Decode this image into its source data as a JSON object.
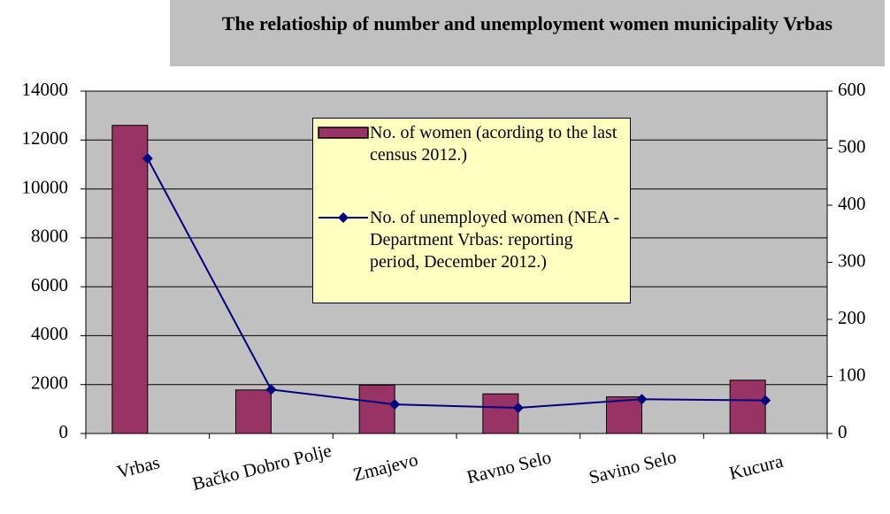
{
  "chart_data": {
    "type": "bar-line",
    "title": "The relatioship of number and unemployment women  municipality Vrbas",
    "categories": [
      "Vrbas",
      "Bačko Dobro Polje",
      "Zmajevo",
      "Ravno Selo",
      "Savino Selo",
      "Kucura"
    ],
    "series": [
      {
        "name": "No. of women (acording to the last census 2012.)",
        "type": "bar",
        "color": "#993366",
        "values": [
          12600,
          1780,
          1980,
          1620,
          1500,
          2180
        ]
      },
      {
        "name": "No. of unemployed women (NEA - Department Vrbas: reporting period, December 2012.)",
        "type": "line",
        "axis": "y2",
        "color": "#000080",
        "values": [
          482,
          77,
          51,
          45,
          60,
          58
        ]
      }
    ],
    "ylim": [
      0,
      14000
    ],
    "yticks": [
      0,
      2000,
      4000,
      6000,
      8000,
      10000,
      12000,
      14000
    ],
    "y2lim": [
      0,
      600
    ],
    "y2ticks": [
      0,
      100,
      200,
      300,
      400,
      500,
      600
    ],
    "grid": true
  }
}
